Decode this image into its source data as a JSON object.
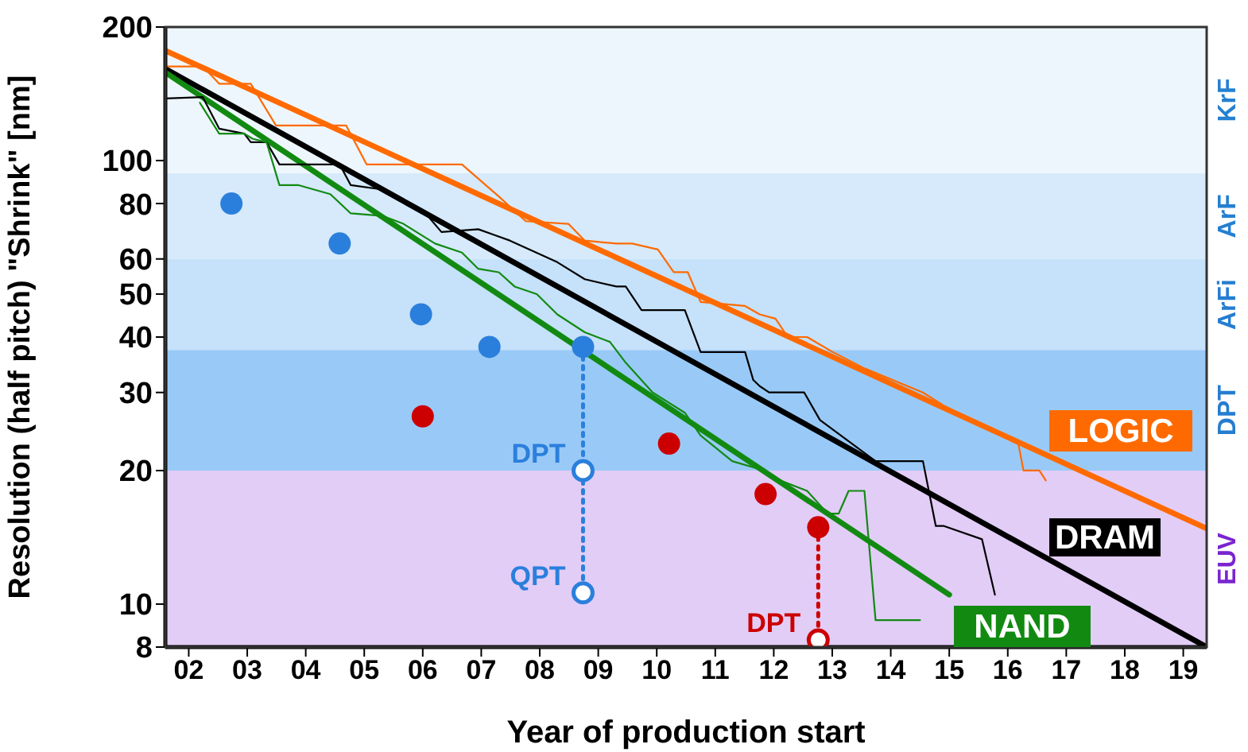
{
  "chart_data": {
    "type": "line",
    "xlabel": "Year of production start",
    "ylabel": "Resolution (half pitch) \"Shrink\" [nm]",
    "log": "y",
    "xlim": [
      2001.6,
      2019.4
    ],
    "ylim": [
      8,
      200
    ],
    "xticks": [
      {
        "value": 2002,
        "label": "02"
      },
      {
        "value": 2003,
        "label": "03"
      },
      {
        "value": 2004,
        "label": "04"
      },
      {
        "value": 2005,
        "label": "05"
      },
      {
        "value": 2006,
        "label": "06"
      },
      {
        "value": 2007,
        "label": "07"
      },
      {
        "value": 2008,
        "label": "08"
      },
      {
        "value": 2009,
        "label": "09"
      },
      {
        "value": 2010,
        "label": "10"
      },
      {
        "value": 2011,
        "label": "11"
      },
      {
        "value": 2012,
        "label": "12"
      },
      {
        "value": 2013,
        "label": "13"
      },
      {
        "value": 2014,
        "label": "14"
      },
      {
        "value": 2015,
        "label": "15"
      },
      {
        "value": 2016,
        "label": "16"
      },
      {
        "value": 2017,
        "label": "17"
      },
      {
        "value": 2018,
        "label": "18"
      },
      {
        "value": 2019,
        "label": "19"
      }
    ],
    "yticks": [
      8,
      10,
      20,
      30,
      40,
      50,
      60,
      80,
      100,
      200
    ],
    "bands": [
      {
        "axis": "y",
        "from": 93.6,
        "to": 200,
        "label": "KrF",
        "color": "#eef6fd"
      },
      {
        "axis": "y",
        "from": 60,
        "to": 93.6,
        "label": "ArF",
        "color": "#d6eafb"
      },
      {
        "axis": "y",
        "from": 37.4,
        "to": 60,
        "label": "ArFi",
        "color": "#c6e1fa"
      },
      {
        "axis": "y",
        "from": 20,
        "to": 37.4,
        "label": "DPT",
        "color": "#99caf7"
      },
      {
        "axis": "y",
        "from": 8,
        "to": 20,
        "label": "EUV",
        "color": "#e2cdf7"
      }
    ],
    "series": [
      {
        "name": "LOGIC",
        "color": "#ff6a00",
        "x": [
          2001.6,
          2019.4
        ],
        "values": [
          177,
          14.8
        ]
      },
      {
        "name": "DRAM",
        "color": "#000000",
        "x": [
          2001.6,
          2019.4
        ],
        "values": [
          161,
          8
        ]
      },
      {
        "name": "NAND",
        "color": "#128a12",
        "x": [
          2001.6,
          2015.0
        ],
        "values": [
          158,
          10.5
        ]
      },
      {
        "color": "#ff6a00",
        "x": [
          2001.6,
          2002.24,
          2002.52,
          2003.06,
          2003.49,
          2004.69,
          2005.04,
          2006.67,
          2007.3,
          2007.76,
          2008.49,
          2008.77,
          2009.31,
          2009.58,
          2010.02,
          2010.29,
          2010.53,
          2010.75,
          2011.51,
          2011.76,
          2012.03,
          2012.24,
          2012.57,
          2013.01,
          2013.55,
          2014.55,
          2014.91,
          2016.18,
          2016.27,
          2016.54,
          2016.65
        ],
        "values": [
          163,
          163,
          149,
          149,
          120,
          120,
          98,
          98,
          83,
          73,
          72,
          66,
          65,
          65,
          63,
          56,
          56,
          48,
          47,
          45,
          44,
          40,
          40,
          37,
          34,
          30,
          28,
          23,
          20,
          20,
          19
        ]
      },
      {
        "color": "#000000",
        "x": [
          2001.6,
          2002.24,
          2002.52,
          2002.95,
          2003.06,
          2003.33,
          2003.55,
          2004.58,
          2004.77,
          2005.32,
          2006.05,
          2006.32,
          2006.95,
          2007.22,
          2007.49,
          2008.3,
          2008.77,
          2009.31,
          2009.47,
          2009.74,
          2010.48,
          2010.75,
          2011.51,
          2011.65,
          2011.76,
          2011.92,
          2012.52,
          2012.79,
          2013.74,
          2014.55,
          2014.77,
          2014.91,
          2015.56,
          2015.78
        ],
        "values": [
          138,
          139,
          118,
          115,
          110,
          110,
          98,
          98,
          88,
          86,
          76,
          69,
          70,
          68,
          66,
          59,
          54,
          52,
          52,
          46,
          46,
          37,
          37,
          32,
          31,
          30,
          30,
          26,
          21,
          21,
          15,
          15,
          14,
          10.5
        ]
      },
      {
        "color": "#128a12",
        "x": [
          2002.19,
          2002.52,
          2002.95,
          2003.09,
          2003.33,
          2003.55,
          2003.88,
          2004.42,
          2004.77,
          2005.32,
          2005.67,
          2006.21,
          2006.67,
          2006.95,
          2007.3,
          2007.57,
          2007.95,
          2008.3,
          2008.77,
          2009.2,
          2009.47,
          2009.93,
          2010.48,
          2010.75,
          2011.29,
          2011.84,
          2012.11,
          2012.57,
          2012.92,
          2013.11,
          2013.28,
          2013.55,
          2013.74,
          2014.5
        ],
        "values": [
          135,
          115,
          115,
          112,
          110,
          88,
          88,
          84,
          76,
          75,
          72,
          65,
          62,
          57,
          56,
          52,
          50,
          45,
          41,
          39,
          35,
          30,
          27,
          24,
          21,
          20,
          19,
          18,
          16,
          16,
          18,
          18,
          9.2,
          9.2
        ]
      },
      {
        "type": "scatter",
        "color": "#2b7fdc",
        "x": [
          2002.73,
          2004.58,
          2005.97,
          2007.14
        ],
        "values": [
          80,
          65,
          45,
          38
        ]
      },
      {
        "type": "scatter",
        "color": "#cc0000",
        "x": [
          2006.0,
          2010.21,
          2011.86
        ],
        "values": [
          26.5,
          23,
          17.7
        ]
      },
      {
        "type": "line",
        "line_style": "dotted",
        "marker": "circle",
        "color": "#2b7fdc",
        "x": [
          2008.74,
          2008.74,
          2008.74
        ],
        "values": [
          38,
          20,
          10.6
        ],
        "value_labels": [
          null,
          "DPT",
          "QPT"
        ]
      },
      {
        "type": "line",
        "line_style": "dotted",
        "marker": "circle",
        "color": "#cc0000",
        "x": [
          2012.76,
          2012.76
        ],
        "values": [
          14.9,
          8.3
        ],
        "value_labels": [
          null,
          "DPT"
        ]
      }
    ]
  }
}
